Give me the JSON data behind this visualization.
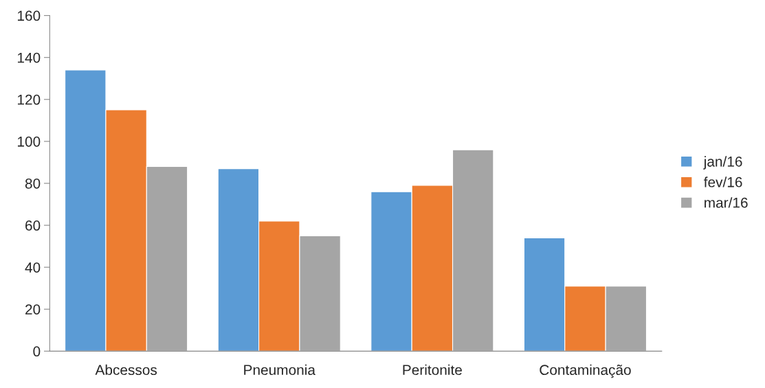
{
  "chart_data": {
    "type": "bar",
    "categories": [
      "Abcessos",
      "Pneumonia",
      "Peritonite",
      "Contaminação"
    ],
    "series": [
      {
        "name": "jan/16",
        "color": "#5b9bd5",
        "values": [
          134,
          87,
          76,
          54
        ]
      },
      {
        "name": "fev/16",
        "color": "#ed7d31",
        "values": [
          115,
          62,
          79,
          31
        ]
      },
      {
        "name": "mar/16",
        "color": "#a5a5a5",
        "values": [
          88,
          55,
          96,
          31
        ]
      }
    ],
    "ylim": [
      0,
      160
    ],
    "yticks": [
      0,
      20,
      40,
      60,
      80,
      100,
      120,
      140,
      160
    ],
    "grid": false,
    "legend": "right"
  }
}
